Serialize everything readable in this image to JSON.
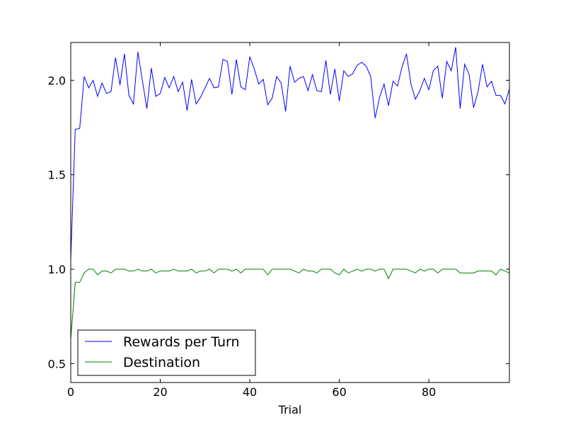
{
  "chart_data": {
    "type": "line",
    "title": "",
    "xlabel": "Trial",
    "ylabel": "",
    "xlim": [
      0,
      98
    ],
    "ylim": [
      0.4,
      2.2
    ],
    "xticks": [
      0,
      20,
      40,
      60,
      80
    ],
    "yticks": [
      0.5,
      1.0,
      1.5,
      2.0
    ],
    "xtick_labels": [
      "0",
      "20",
      "40",
      "60",
      "80"
    ],
    "ytick_labels": [
      "0.5",
      "1.0",
      "1.5",
      "2.0"
    ],
    "grid": false,
    "legend_position": "bottom-left",
    "x": [
      0,
      1,
      2,
      3,
      4,
      5,
      6,
      7,
      8,
      9,
      10,
      11,
      12,
      13,
      14,
      15,
      16,
      17,
      18,
      19,
      20,
      21,
      22,
      23,
      24,
      25,
      26,
      27,
      28,
      29,
      30,
      31,
      32,
      33,
      34,
      35,
      36,
      37,
      38,
      39,
      40,
      41,
      42,
      43,
      44,
      45,
      46,
      47,
      48,
      49,
      50,
      51,
      52,
      53,
      54,
      55,
      56,
      57,
      58,
      59,
      60,
      61,
      62,
      63,
      64,
      65,
      66,
      67,
      68,
      69,
      70,
      71,
      72,
      73,
      74,
      75,
      76,
      77,
      78,
      79,
      80,
      81,
      82,
      83,
      84,
      85,
      86,
      87,
      88,
      89,
      90,
      91,
      92,
      93,
      94,
      95,
      96,
      97,
      98
    ],
    "series": [
      {
        "name": "Rewards per Turn",
        "color": "#0000ff",
        "values": [
          1.05,
          1.74,
          1.745,
          2.02,
          1.96,
          2.0,
          1.915,
          1.985,
          1.93,
          1.94,
          2.12,
          1.975,
          2.14,
          1.92,
          1.875,
          2.15,
          2.0,
          1.85,
          2.065,
          1.915,
          1.93,
          2.015,
          1.96,
          2.02,
          1.94,
          1.99,
          1.84,
          2.005,
          1.875,
          1.91,
          1.96,
          2.01,
          1.96,
          1.965,
          2.11,
          2.1,
          1.925,
          2.11,
          1.965,
          1.95,
          2.125,
          2.06,
          1.98,
          2.005,
          1.87,
          1.905,
          2.02,
          1.985,
          1.835,
          2.075,
          1.99,
          2.01,
          2.02,
          1.945,
          2.03,
          1.945,
          1.94,
          2.105,
          1.925,
          2.06,
          1.89,
          2.05,
          2.02,
          2.035,
          2.08,
          2.095,
          2.075,
          2.02,
          1.8,
          1.91,
          1.98,
          1.865,
          1.995,
          1.97,
          2.07,
          2.14,
          1.98,
          1.9,
          1.945,
          2.01,
          1.95,
          2.05,
          2.075,
          1.905,
          2.1,
          2.05,
          2.175,
          1.85,
          2.085,
          2.03,
          1.855,
          1.94,
          2.085,
          1.965,
          1.995,
          1.92,
          1.92,
          1.875,
          1.955
        ]
      },
      {
        "name": "Destination",
        "color": "#008000",
        "values": [
          0.63,
          0.93,
          0.93,
          0.98,
          1.0,
          1.0,
          0.97,
          0.99,
          0.99,
          0.98,
          1.0,
          1.0,
          1.0,
          0.99,
          0.99,
          1.0,
          0.99,
          0.99,
          1.0,
          0.98,
          0.99,
          0.99,
          0.99,
          1.0,
          0.99,
          0.99,
          0.99,
          1.0,
          0.98,
          0.99,
          0.99,
          1.0,
          0.98,
          1.0,
          1.0,
          1.0,
          0.99,
          1.0,
          0.98,
          1.0,
          1.0,
          1.0,
          1.0,
          1.0,
          0.97,
          1.0,
          1.0,
          1.0,
          1.0,
          1.0,
          0.99,
          0.98,
          1.0,
          0.99,
          0.99,
          0.98,
          1.0,
          1.0,
          1.0,
          0.98,
          0.97,
          1.0,
          0.98,
          0.99,
          1.0,
          0.99,
          1.0,
          1.0,
          0.99,
          1.0,
          1.0,
          0.95,
          1.0,
          1.0,
          1.0,
          1.0,
          0.99,
          0.98,
          1.0,
          0.99,
          1.0,
          1.0,
          0.98,
          1.0,
          1.0,
          1.0,
          1.0,
          0.98,
          0.98,
          0.98,
          0.98,
          0.99,
          0.99,
          0.99,
          0.99,
          0.97,
          1.0,
          0.99,
          0.98
        ]
      }
    ]
  }
}
